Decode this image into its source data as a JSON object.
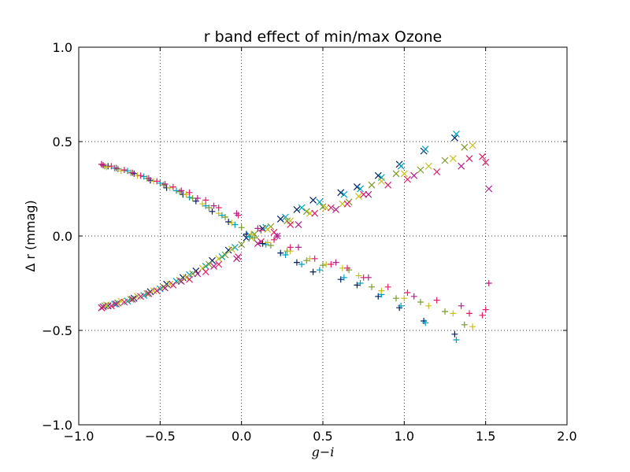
{
  "chart_data": {
    "type": "scatter",
    "title": "r band effect of min/max Ozone",
    "xlabel": "g−i",
    "ylabel": "Δ r (mmag)",
    "xlim": [
      -1.0,
      2.0
    ],
    "ylim": [
      -1.0,
      1.0
    ],
    "xticks": [
      -1.0,
      -0.5,
      0.0,
      0.5,
      1.0,
      1.5,
      2.0
    ],
    "xtick_labels": [
      "−1.0",
      "−0.5",
      "0.0",
      "0.5",
      "1.0",
      "1.5",
      "2.0"
    ],
    "yticks": [
      -1.0,
      -0.5,
      0.0,
      0.5,
      1.0
    ],
    "ytick_labels": [
      "−1.0",
      "−0.5",
      "0.0",
      "0.5",
      "1.0"
    ],
    "grid": true,
    "colors": [
      "#00205f",
      "#006b80",
      "#00a0c0",
      "#26cfe0",
      "#7a9a2a",
      "#c8c020",
      "#e06a1a",
      "#e0206a",
      "#b0208a"
    ],
    "series": [
      {
        "marker": "x",
        "color_index": 0,
        "x": [
          -0.86,
          -0.82,
          -0.76,
          -0.66,
          -0.56,
          -0.46,
          -0.36,
          -0.28,
          -0.18,
          -0.08,
          0.03,
          0.13,
          0.24,
          0.34,
          0.44,
          0.61,
          0.71,
          0.84,
          0.97,
          1.12,
          1.31
        ],
        "y": [
          -0.38,
          -0.37,
          -0.355,
          -0.33,
          -0.295,
          -0.255,
          -0.22,
          -0.185,
          -0.13,
          -0.075,
          -0.01,
          0.04,
          0.09,
          0.14,
          0.19,
          0.23,
          0.26,
          0.32,
          0.38,
          0.45,
          0.52
        ]
      },
      {
        "marker": "x",
        "color_index": 2,
        "x": [
          -0.85,
          -0.78,
          -0.7,
          -0.6,
          -0.5,
          -0.4,
          -0.32,
          -0.22,
          -0.12,
          -0.04,
          0.05,
          0.15,
          0.27,
          0.37,
          0.48,
          0.63,
          0.73,
          0.86,
          0.98,
          1.13,
          1.32
        ],
        "y": [
          -0.375,
          -0.36,
          -0.345,
          -0.315,
          -0.28,
          -0.24,
          -0.205,
          -0.16,
          -0.11,
          -0.06,
          0.005,
          0.045,
          0.1,
          0.15,
          0.18,
          0.22,
          0.25,
          0.31,
          0.37,
          0.46,
          0.54
        ]
      },
      {
        "marker": "x",
        "color_index": 4,
        "x": [
          -0.84,
          -0.76,
          -0.68,
          -0.58,
          -0.48,
          -0.38,
          -0.3,
          -0.2,
          -0.1,
          0.0,
          0.08,
          0.18,
          0.28,
          0.4,
          0.5,
          0.66,
          0.8,
          0.95,
          1.1,
          1.25,
          1.37
        ],
        "y": [
          -0.37,
          -0.355,
          -0.335,
          -0.305,
          -0.27,
          -0.235,
          -0.2,
          -0.15,
          -0.1,
          -0.045,
          0.01,
          0.05,
          0.08,
          0.13,
          0.155,
          0.18,
          0.27,
          0.33,
          0.35,
          0.4,
          0.47
        ]
      },
      {
        "marker": "x",
        "color_index": 5,
        "x": [
          -0.83,
          -0.74,
          -0.64,
          -0.54,
          -0.44,
          -0.34,
          -0.24,
          -0.14,
          -0.06,
          0.06,
          0.16,
          0.3,
          0.42,
          0.52,
          0.62,
          0.72,
          0.86,
          1.0,
          1.15,
          1.3,
          1.42
        ],
        "y": [
          -0.365,
          -0.345,
          -0.32,
          -0.29,
          -0.255,
          -0.22,
          -0.17,
          -0.12,
          -0.07,
          -0.01,
          0.035,
          0.08,
          0.12,
          0.15,
          0.17,
          0.21,
          0.29,
          0.33,
          0.37,
          0.41,
          0.48
        ]
      },
      {
        "marker": "x",
        "color_index": 7,
        "x": [
          -0.86,
          -0.8,
          -0.72,
          -0.62,
          -0.52,
          -0.42,
          -0.32,
          -0.22,
          -0.14,
          -0.02,
          0.12,
          0.2,
          0.3,
          0.45,
          0.55,
          0.65,
          0.75,
          0.9,
          1.02,
          1.2,
          1.4,
          1.48,
          1.5
        ],
        "y": [
          -0.38,
          -0.37,
          -0.35,
          -0.32,
          -0.29,
          -0.26,
          -0.23,
          -0.19,
          -0.15,
          -0.11,
          -0.03,
          0.02,
          0.06,
          0.12,
          0.15,
          0.17,
          0.22,
          0.27,
          0.3,
          0.34,
          0.41,
          0.42,
          0.39
        ]
      },
      {
        "marker": "x",
        "color_index": 8,
        "x": [
          -0.85,
          -0.77,
          -0.67,
          -0.57,
          -0.47,
          -0.37,
          -0.27,
          -0.17,
          -0.03,
          0.1,
          0.22,
          0.35,
          0.58,
          0.78,
          1.06,
          1.35,
          1.52
        ],
        "y": [
          -0.375,
          -0.36,
          -0.335,
          -0.305,
          -0.275,
          -0.24,
          -0.2,
          -0.16,
          -0.12,
          -0.04,
          0.0,
          0.06,
          0.14,
          0.22,
          0.32,
          0.37,
          0.25
        ]
      },
      {
        "marker": "+",
        "color_index": 0,
        "x": [
          -0.86,
          -0.82,
          -0.76,
          -0.66,
          -0.56,
          -0.46,
          -0.36,
          -0.28,
          -0.18,
          -0.08,
          0.03,
          0.13,
          0.24,
          0.34,
          0.44,
          0.61,
          0.71,
          0.84,
          0.97,
          1.12,
          1.31
        ],
        "y": [
          0.38,
          0.37,
          0.355,
          0.33,
          0.295,
          0.255,
          0.22,
          0.185,
          0.13,
          0.075,
          0.01,
          -0.04,
          -0.09,
          -0.14,
          -0.19,
          -0.23,
          -0.26,
          -0.32,
          -0.38,
          -0.45,
          -0.52
        ]
      },
      {
        "marker": "+",
        "color_index": 2,
        "x": [
          -0.85,
          -0.78,
          -0.7,
          -0.6,
          -0.5,
          -0.4,
          -0.32,
          -0.22,
          -0.12,
          -0.04,
          0.05,
          0.15,
          0.27,
          0.37,
          0.48,
          0.63,
          0.73,
          0.86,
          0.98,
          1.13,
          1.32
        ],
        "y": [
          0.375,
          0.36,
          0.345,
          0.315,
          0.28,
          0.24,
          0.205,
          0.16,
          0.11,
          0.06,
          -0.005,
          -0.045,
          -0.1,
          -0.15,
          -0.18,
          -0.22,
          -0.25,
          -0.31,
          -0.37,
          -0.46,
          -0.55
        ]
      },
      {
        "marker": "+",
        "color_index": 4,
        "x": [
          -0.84,
          -0.76,
          -0.68,
          -0.58,
          -0.48,
          -0.38,
          -0.3,
          -0.2,
          -0.1,
          0.0,
          0.08,
          0.18,
          0.28,
          0.4,
          0.5,
          0.66,
          0.8,
          0.95,
          1.1,
          1.25,
          1.37
        ],
        "y": [
          0.37,
          0.355,
          0.335,
          0.305,
          0.27,
          0.235,
          0.2,
          0.15,
          0.1,
          0.045,
          -0.01,
          -0.05,
          -0.08,
          -0.13,
          -0.155,
          -0.18,
          -0.27,
          -0.33,
          -0.35,
          -0.4,
          -0.47
        ]
      },
      {
        "marker": "+",
        "color_index": 5,
        "x": [
          -0.83,
          -0.74,
          -0.64,
          -0.54,
          -0.44,
          -0.34,
          -0.24,
          -0.14,
          -0.06,
          0.06,
          0.16,
          0.3,
          0.42,
          0.52,
          0.62,
          0.72,
          0.86,
          1.0,
          1.15,
          1.3,
          1.42
        ],
        "y": [
          0.365,
          0.345,
          0.32,
          0.29,
          0.255,
          0.22,
          0.17,
          0.12,
          0.07,
          0.01,
          -0.035,
          -0.08,
          -0.12,
          -0.15,
          -0.17,
          -0.21,
          -0.29,
          -0.33,
          -0.37,
          -0.41,
          -0.48
        ]
      },
      {
        "marker": "+",
        "color_index": 7,
        "x": [
          -0.86,
          -0.8,
          -0.72,
          -0.62,
          -0.52,
          -0.42,
          -0.32,
          -0.22,
          -0.14,
          -0.02,
          0.12,
          0.2,
          0.3,
          0.45,
          0.55,
          0.65,
          0.75,
          0.9,
          1.02,
          1.2,
          1.4,
          1.48,
          1.5
        ],
        "y": [
          0.38,
          0.37,
          0.35,
          0.32,
          0.29,
          0.26,
          0.23,
          0.19,
          0.15,
          0.11,
          0.03,
          -0.02,
          -0.06,
          -0.12,
          -0.15,
          -0.17,
          -0.22,
          -0.27,
          -0.3,
          -0.34,
          -0.41,
          -0.42,
          -0.39
        ]
      },
      {
        "marker": "+",
        "color_index": 8,
        "x": [
          -0.85,
          -0.77,
          -0.67,
          -0.57,
          -0.47,
          -0.37,
          -0.27,
          -0.17,
          -0.03,
          0.1,
          0.22,
          0.35,
          0.58,
          0.78,
          1.06,
          1.35,
          1.52
        ],
        "y": [
          0.375,
          0.36,
          0.335,
          0.305,
          0.275,
          0.24,
          0.2,
          0.16,
          0.12,
          0.04,
          0.0,
          -0.06,
          -0.14,
          -0.22,
          -0.32,
          -0.37,
          -0.25
        ]
      }
    ]
  }
}
